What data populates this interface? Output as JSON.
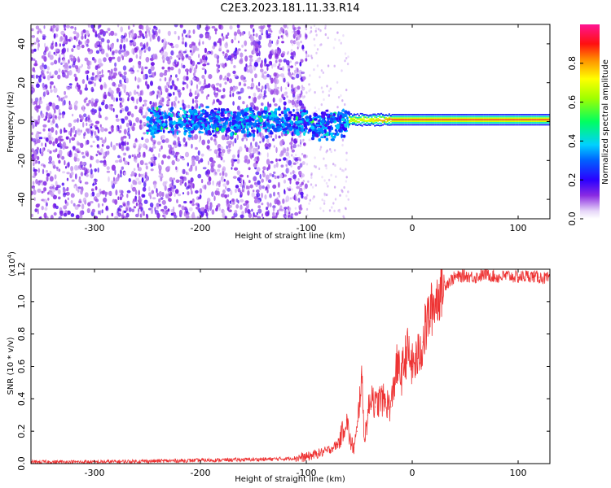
{
  "figure": {
    "title": "C2E3.2023.181.11.33.R14"
  },
  "chart_data": [
    {
      "type": "heatmap",
      "title": "C2E3.2023.181.11.33.R14",
      "xlabel": "Height of straight line (km)",
      "ylabel": "Frequency (Hz)",
      "xlim": [
        -360,
        130
      ],
      "ylim": [
        -50,
        50
      ],
      "xticks": [
        -300,
        -200,
        -100,
        0,
        100
      ],
      "yticks": [
        -40,
        -20,
        0,
        20,
        40
      ],
      "grid": false,
      "description_of_values": {
        "noise_region_km": [
          -360,
          -120
        ],
        "noise_amplitude": [
          0.3,
          0.4
        ],
        "signal_band_region_km": [
          -250,
          -60
        ],
        "signal_band_frequency_hz": [
          -8,
          8
        ],
        "signal_band_amplitude": [
          0.3,
          0.5
        ],
        "transition_region_km": [
          -120,
          -60
        ],
        "transition_frequency_dip_hz": -6,
        "steady_line_start_km": -60,
        "steady_line_frequency_hz": 1,
        "steady_line_peak_amplitude": 0.9
      },
      "colorbar": {
        "label": "Normalized spectral amplitude",
        "range": [
          0.0,
          1.0
        ],
        "ticks": [
          "0.0",
          "0.2",
          "0.4",
          "0.6",
          "0.8"
        ],
        "colors": [
          "#ffffff",
          "#d9c2f5",
          "#8a2be2",
          "#4b0082",
          "#0000ff",
          "#00bfff",
          "#00ff7f",
          "#7fff00",
          "#ffff00",
          "#ff8c00",
          "#ff0000",
          "#ff1493"
        ]
      }
    },
    {
      "type": "line",
      "xlabel": "Height of straight line (km)",
      "ylabel": "SNR (10 * v/v)",
      "y_scale_label": "(x10",
      "y_scale_exponent": "4",
      "y_scale_suffix": ")",
      "xlim": [
        -360,
        130
      ],
      "ylim": [
        0,
        1.2
      ],
      "xticks": [
        -300,
        -200,
        -100,
        0,
        100
      ],
      "yticks": [
        "0.0",
        "0.2",
        "0.4",
        "0.6",
        "0.8",
        "1.0",
        "1.2"
      ],
      "color": "#ee3333",
      "series": [
        {
          "x": [
            -360,
            -300,
            -250,
            -200,
            -150,
            -120,
            -100,
            -90,
            -80,
            -70,
            -62,
            -58,
            -55,
            -52,
            -48,
            -45,
            -42,
            -38,
            -35,
            -30,
            -25,
            -20,
            -15,
            -10,
            -5,
            0,
            5,
            10,
            15,
            20,
            25,
            30,
            40,
            50,
            60,
            70,
            80,
            90,
            100,
            110,
            120,
            130
          ],
          "y": [
            0.01,
            0.01,
            0.015,
            0.02,
            0.025,
            0.03,
            0.04,
            0.06,
            0.08,
            0.12,
            0.27,
            0.12,
            0.1,
            0.2,
            0.55,
            0.15,
            0.3,
            0.45,
            0.35,
            0.4,
            0.38,
            0.35,
            0.6,
            0.55,
            0.7,
            0.6,
            0.65,
            0.75,
            0.9,
            0.98,
            1.05,
            1.1,
            1.15,
            1.16,
            1.15,
            1.17,
            1.15,
            1.16,
            1.15,
            1.16,
            1.15,
            1.14
          ]
        }
      ]
    }
  ]
}
